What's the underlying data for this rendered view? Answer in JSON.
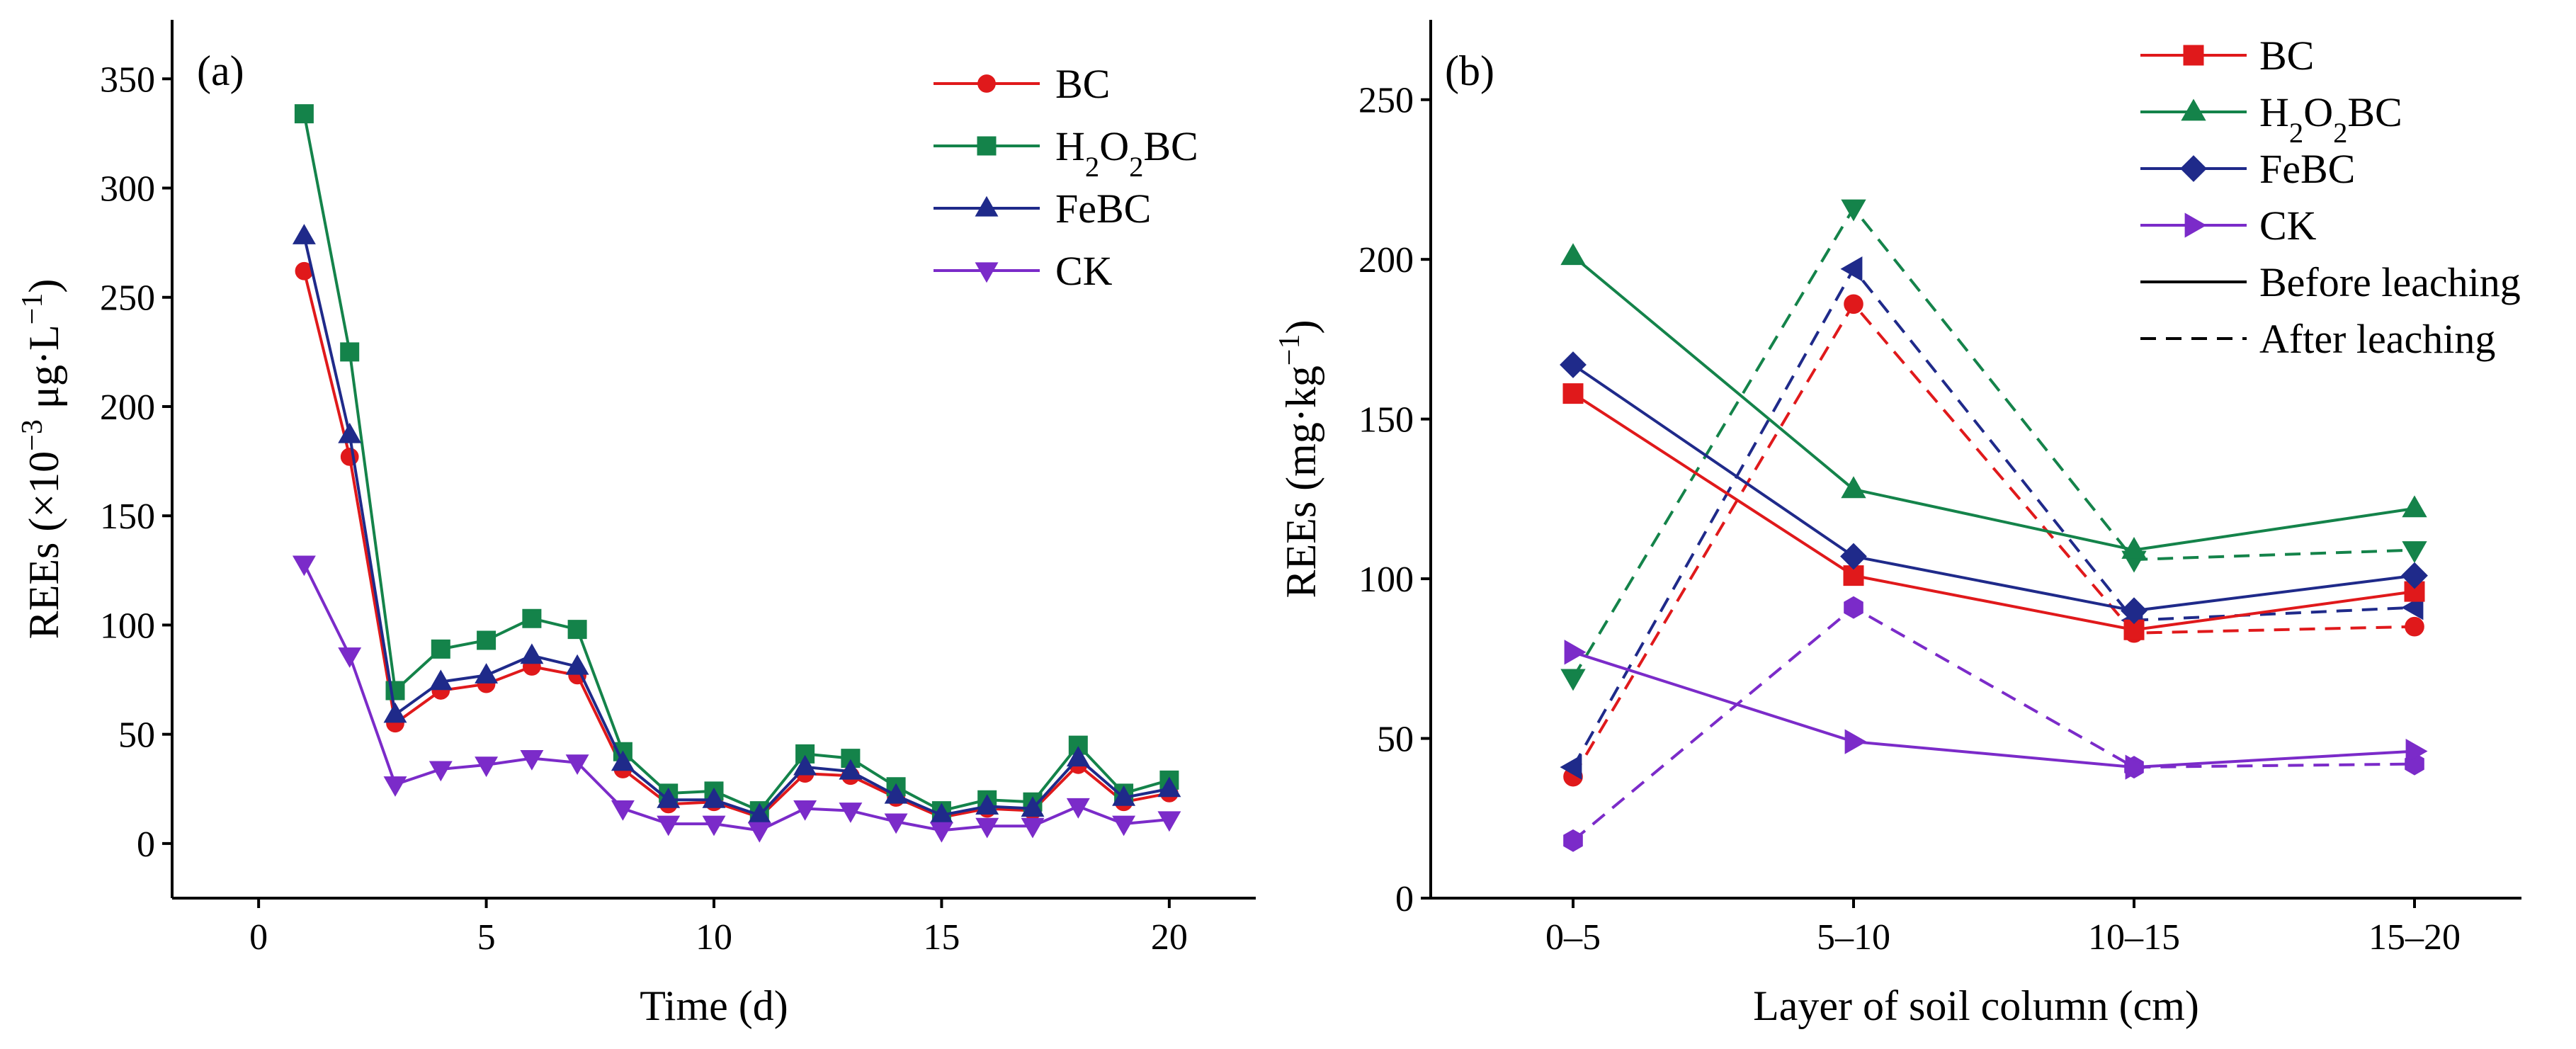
{
  "chart_data": [
    {
      "id": "a",
      "type": "line",
      "panel_label": "(a)",
      "xlabel": "Time (d)",
      "ylabel": "REEs (×10⁻³ μg·L⁻¹)",
      "xlim": [
        -1.9,
        21.9
      ],
      "ylim": [
        -25,
        377
      ],
      "xticks": [
        0,
        5,
        10,
        15,
        20
      ],
      "yticks": [
        0,
        50,
        100,
        150,
        200,
        250,
        300,
        350
      ],
      "legend_position": "top-right",
      "x": [
        1,
        2,
        3,
        4,
        5,
        6,
        7,
        8,
        9,
        10,
        11,
        12,
        13,
        14,
        15,
        16,
        17,
        18,
        19,
        20
      ],
      "series": [
        {
          "name": "BC",
          "color": "#e0191b",
          "marker": "circle",
          "values": [
            262,
            177,
            55,
            70,
            73,
            81,
            77,
            34,
            18,
            19,
            12,
            32,
            31,
            21,
            12,
            16,
            15,
            36,
            19,
            23
          ]
        },
        {
          "name": "H₂O₂BC",
          "color": "#14834a",
          "marker": "square",
          "values": [
            334,
            225,
            70,
            89,
            93,
            103,
            98,
            42,
            23,
            24,
            15,
            41,
            39,
            26,
            15,
            20,
            19,
            45,
            23,
            29
          ]
        },
        {
          "name": "FeBC",
          "color": "#1f2a8a",
          "marker": "triangle-up",
          "values": [
            278,
            187,
            59,
            74,
            77,
            86,
            81,
            37,
            20,
            20,
            13,
            35,
            33,
            22,
            13,
            17,
            16,
            39,
            21,
            25
          ]
        },
        {
          "name": "CK",
          "color": "#7b2bc9",
          "marker": "triangle-down",
          "values": [
            128,
            86,
            27,
            34,
            36,
            39,
            37,
            16,
            9,
            9,
            6,
            16,
            15,
            10,
            6,
            8,
            8,
            17,
            9,
            11
          ]
        }
      ]
    },
    {
      "id": "b",
      "type": "line",
      "panel_label": "(b)",
      "xlabel": "Layer of soil column (cm)",
      "ylabel": "REEs (mg·kg⁻¹)",
      "categories": [
        "0–5",
        "5–10",
        "10–15",
        "15–20"
      ],
      "ylim": [
        0,
        275
      ],
      "yticks": [
        0,
        50,
        100,
        150,
        200,
        250
      ],
      "legend_position": "top-right",
      "style_legend": [
        {
          "label": "Before leaching",
          "dash": "solid"
        },
        {
          "label": "After leaching",
          "dash": "dashed"
        }
      ],
      "series": [
        {
          "name": "BC",
          "color": "#e0191b",
          "marker": "square",
          "before": [
            158,
            101,
            84,
            96
          ],
          "after": [
            38,
            186,
            83,
            85
          ],
          "after_marker": "circle"
        },
        {
          "name": "H₂O₂BC",
          "color": "#14834a",
          "marker": "triangle-up",
          "before": [
            201,
            128,
            109,
            122
          ],
          "after": [
            69,
            216,
            106,
            109
          ],
          "after_marker": "triangle-down"
        },
        {
          "name": "FeBC",
          "color": "#1f2a8a",
          "marker": "diamond",
          "before": [
            167,
            107,
            90,
            101
          ],
          "after": [
            41,
            197,
            87,
            91
          ],
          "after_marker": "triangle-left"
        },
        {
          "name": "CK",
          "color": "#7b2bc9",
          "marker": "triangle-right",
          "before": [
            77,
            49,
            41,
            46
          ],
          "after": [
            18,
            91,
            41,
            42
          ],
          "after_marker": "hexagon"
        }
      ]
    }
  ]
}
